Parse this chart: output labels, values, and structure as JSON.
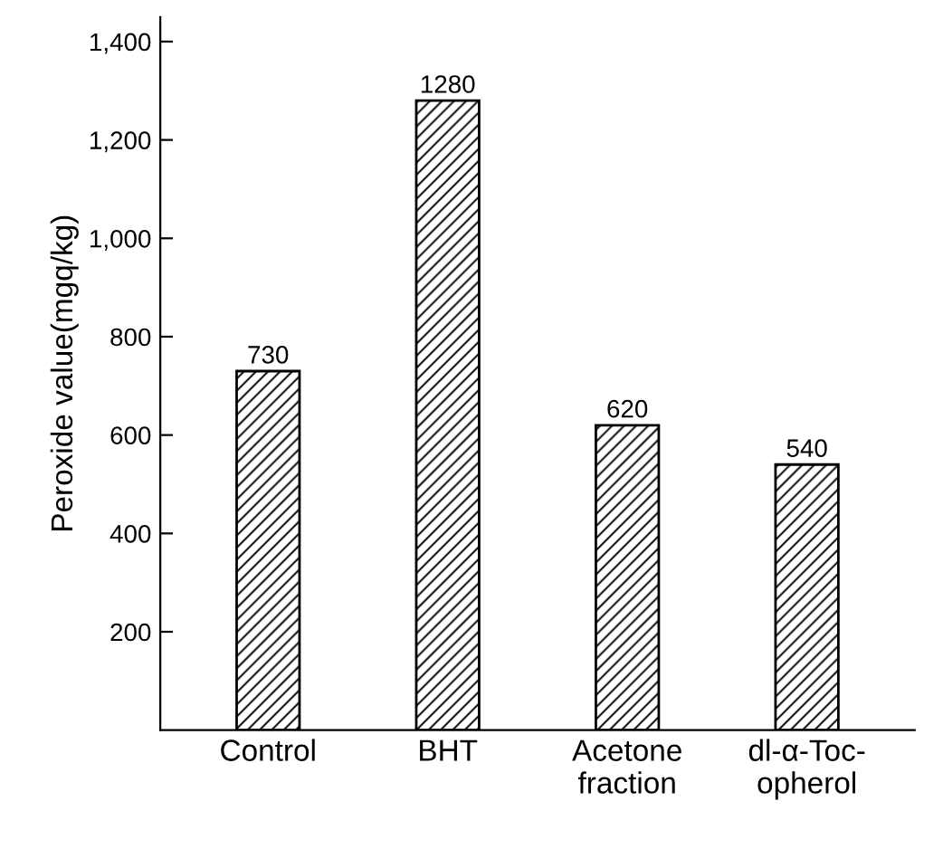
{
  "chart_data": {
    "type": "bar",
    "ylabel": "Peroxide value(mgq/kg)",
    "categories": [
      "Control",
      "BHT",
      "Acetone\nfraction",
      "dl-α-Toc-\nopherol"
    ],
    "values": [
      730,
      1280,
      620,
      540
    ],
    "color": "#000000",
    "data_labels": true,
    "ylim": [
      0,
      1450
    ],
    "yticks": [
      200,
      400,
      600,
      800,
      {
        "value": 1000,
        "label": "1,000"
      },
      {
        "value": 1200,
        "label": "1,200"
      },
      {
        "value": 1400,
        "label": "1,400"
      }
    ],
    "grid": false,
    "legend": false
  }
}
